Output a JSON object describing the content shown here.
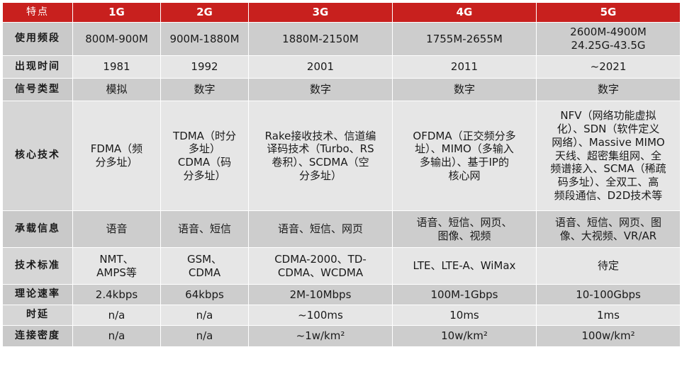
{
  "header": {
    "feature": "特点",
    "generations": [
      "1G",
      "2G",
      "3G",
      "4G",
      "5G"
    ]
  },
  "rows": [
    {
      "label": "使用频段",
      "cells": [
        "800M-900M",
        "900M-1880M",
        "1880M-2150M",
        "1755M-2655M",
        "2600M-4900M\n24.25G-43.5G"
      ]
    },
    {
      "label": "出现时间",
      "cells": [
        "1981",
        "1992",
        "2001",
        "2011",
        "~2021"
      ]
    },
    {
      "label": "信号类型",
      "cells": [
        "模拟",
        "数字",
        "数字",
        "数字",
        "数字"
      ]
    },
    {
      "label": "核心技术",
      "cells": [
        "FDMA（频\n分多址）",
        "TDMA（时分\n多址）\nCDMA（码\n分多址）",
        "Rake接收技术、信道编\n译码技术（Turbo、RS\n卷积）、SCDMA（空\n分多址）",
        "OFDMA（正交频分多\n址）、MIMO（多输入\n多输出）、基于IP的\n核心网",
        "NFV（网络功能虚拟\n化）、SDN（软件定义\n网络）、Massive MIMO\n天线、超密集组网、全\n频谱接入、SCMA（稀疏\n码多址）、全双工、高\n频段通信、D2D技术等"
      ]
    },
    {
      "label": "承载信息",
      "cells": [
        "语音",
        "语音、短信",
        "语音、短信、网页",
        "语音、短信、网页、\n图像、视频",
        "语音、短信、网页、图\n像、大视频、VR/AR"
      ]
    },
    {
      "label": "技术标准",
      "cells": [
        "NMT、\nAMPS等",
        "GSM、\nCDMA",
        "CDMA-2000、TD-\nCDMA、WCDMA",
        "LTE、LTE-A、WiMax",
        "待定"
      ]
    },
    {
      "label": "理论速率",
      "cells": [
        "2.4kbps",
        "64kbps",
        "2M-10Mbps",
        "100M-1Gbps",
        "10-100Gbps"
      ]
    },
    {
      "label": "时延",
      "cells": [
        "n/a",
        "n/a",
        "~100ms",
        "10ms",
        "1ms"
      ]
    },
    {
      "label": "连接密度",
      "cells": [
        "n/a",
        "n/a",
        "~1w/km²",
        "10w/km²",
        "100w/km²"
      ]
    }
  ],
  "colors": {
    "header_red": "#c8201e",
    "row_gray_dark": "#cdcdcd",
    "row_gray_light": "#e6e6e6"
  }
}
